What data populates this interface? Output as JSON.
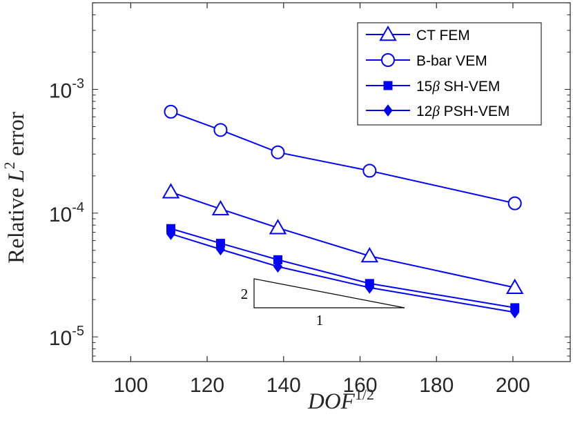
{
  "chart_data": {
    "type": "line",
    "xlabel": "DOF",
    "xlabel_sup": "1/2",
    "ylabel_prefix": "Relative ",
    "ylabel_var": "L",
    "ylabel_sup": "2",
    "ylabel_suffix": " error",
    "xlim": [
      90,
      215
    ],
    "ylim_log10": [
      -5.2,
      -2.3
    ],
    "yscale": "log",
    "grid": false,
    "legend_position": "top-right",
    "x_ticks": [
      100,
      120,
      140,
      160,
      180,
      200
    ],
    "x_tick_labels": [
      "100",
      "120",
      "140",
      "160",
      "180",
      "200"
    ],
    "y_ticks": [
      -5,
      -4,
      -3
    ],
    "y_tick_labels": [
      {
        "base": "10",
        "exp": "-5"
      },
      {
        "base": "10",
        "exp": "-4"
      },
      {
        "base": "10",
        "exp": "-3"
      }
    ],
    "color": "#0000ff",
    "series": [
      {
        "name": "CT FEM",
        "marker": "triangle",
        "x": [
          110.5,
          123.5,
          138.5,
          162.5,
          200.5
        ],
        "y": [
          0.000148,
          0.000108,
          7.6e-05,
          4.5e-05,
          2.5e-05
        ]
      },
      {
        "name": "B-bar VEM",
        "marker": "circle",
        "x": [
          110.5,
          123.5,
          138.5,
          162.5,
          200.5
        ],
        "y": [
          0.00066,
          0.00047,
          0.00031,
          0.00022,
          0.00012
        ]
      },
      {
        "name": "15β SH-VEM",
        "name_parts": [
          "15",
          "β",
          " SH-VEM"
        ],
        "marker": "square",
        "x": [
          110.5,
          123.5,
          138.5,
          162.5,
          200.5
        ],
        "y": [
          7.5e-05,
          5.7e-05,
          4.2e-05,
          2.7e-05,
          1.72e-05
        ]
      },
      {
        "name": "12β PSH-VEM",
        "name_parts": [
          "12",
          "β",
          " PSH-VEM"
        ],
        "marker": "diamond",
        "x": [
          110.5,
          123.5,
          138.5,
          162.5,
          200.5
        ],
        "y": [
          6.8e-05,
          5.1e-05,
          3.7e-05,
          2.5e-05,
          1.58e-05
        ]
      }
    ],
    "slope_triangle": {
      "rise_label": "2",
      "run_label": "1"
    }
  }
}
